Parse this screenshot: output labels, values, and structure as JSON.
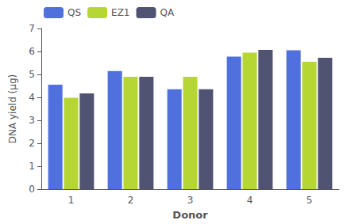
{
  "chart_data": {
    "type": "bar",
    "xlabel": "Donor",
    "ylabel": "DNA yield (µg)",
    "categories": [
      "1",
      "2",
      "3",
      "4",
      "5"
    ],
    "series": [
      {
        "name": "QS",
        "values": [
          4.55,
          5.15,
          4.35,
          5.78,
          6.05
        ]
      },
      {
        "name": "EZ1",
        "values": [
          3.98,
          4.9,
          4.9,
          5.95,
          5.55
        ]
      },
      {
        "name": "QA",
        "values": [
          4.17,
          4.9,
          4.35,
          6.07,
          5.72
        ]
      }
    ],
    "ylim": [
      0,
      7
    ],
    "yticks": [
      0,
      1,
      2,
      3,
      4,
      5,
      6,
      7
    ],
    "grid": false,
    "legend": "upper left"
  }
}
